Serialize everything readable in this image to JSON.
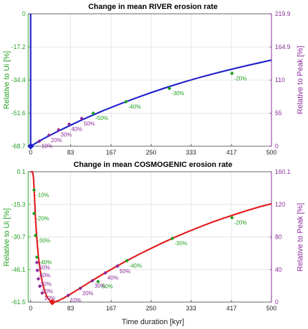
{
  "colors": {
    "left_axis": "#22a022",
    "right_axis": "#8a2a9a",
    "river_line": "#1f1fcc",
    "cosmo_line": "#e31a1c",
    "grid": "#e6e6e6",
    "label_green": "#22a022",
    "label_purple": "#8a2a9a"
  },
  "xaxis": {
    "label": "Time duration [kyr]",
    "ticks": [
      0,
      83,
      167,
      250,
      333,
      417,
      500
    ],
    "lim": [
      -5,
      500
    ]
  },
  "chart_data": [
    {
      "type": "line",
      "title": "Change in mean RIVER erosion rate",
      "ylabel_left": "Relative to Ui [%]",
      "ylabel_right": "Relative to Peak [%]",
      "left_ticks": [
        "0",
        "-17.2",
        "-34.4",
        "-51.6",
        "-68.7"
      ],
      "left_tick_values": [
        0,
        -17.2,
        -34.4,
        -51.6,
        -68.7
      ],
      "right_ticks": [
        "219.9",
        "164.9",
        "110",
        "55",
        "0"
      ],
      "right_tick_values": [
        219.9,
        164.9,
        110,
        55,
        0
      ],
      "ylim": [
        -68.7,
        0
      ],
      "xlim": [
        -5,
        500
      ],
      "series": [
        {
          "x": [
            0,
            0,
            0,
            10,
            25,
            50,
            75,
            100,
            125,
            150,
            175,
            200,
            225,
            250,
            275,
            300,
            325,
            350,
            375,
            400,
            425,
            450,
            475,
            500
          ],
          "y": [
            0,
            0,
            -68.7,
            -67.2,
            -65.0,
            -61.8,
            -58.7,
            -55.8,
            -53.0,
            -50.3,
            -47.8,
            -45.4,
            -43.1,
            -40.9,
            -38.8,
            -36.8,
            -34.9,
            -33.1,
            -31.4,
            -29.8,
            -28.3,
            -26.8,
            -25.4,
            -24.0
          ]
        }
      ],
      "markers": [
        {
          "x": 0,
          "y": -68.7,
          "label": "",
          "color": "#1f1fcc"
        },
        {
          "x": 18,
          "y": -66.1,
          "label": "10%",
          "color": "#8a2a9a"
        },
        {
          "x": 38,
          "y": -63.0,
          "label": "20%",
          "color": "#8a2a9a"
        },
        {
          "x": 58,
          "y": -60.2,
          "label": "30%",
          "color": "#8a2a9a"
        },
        {
          "x": 80,
          "y": -57.3,
          "label": "40%",
          "color": "#8a2a9a"
        },
        {
          "x": 106,
          "y": -54.3,
          "label": "50%",
          "color": "#8a2a9a"
        },
        {
          "x": 130,
          "y": -51.6,
          "label": "-50%",
          "color": "#22a022"
        },
        {
          "x": 198,
          "y": -45.6,
          "label": "-40%",
          "color": "#22a022"
        },
        {
          "x": 288,
          "y": -38.7,
          "label": "-30%",
          "color": "#22a022"
        },
        {
          "x": 418,
          "y": -30.9,
          "label": "-20%",
          "color": "#22a022"
        }
      ]
    },
    {
      "type": "line",
      "title": "Change in mean COSMOGENIC erosion rate",
      "ylabel_left": "Relative to Ui [%]",
      "ylabel_right": "Relative to Peak [%]",
      "left_ticks": [
        "0.1",
        "-15.3",
        "-30.7",
        "-46.1",
        "-61.5"
      ],
      "left_tick_values": [
        0.1,
        -15.3,
        -30.7,
        -46.1,
        -61.5
      ],
      "right_ticks": [
        "160.1",
        "120",
        "80",
        "40",
        "0"
      ],
      "right_tick_values": [
        160.1,
        120,
        80,
        40,
        0
      ],
      "ylim": [
        -61.5,
        0.1
      ],
      "xlim": [
        -5,
        500
      ],
      "series": [
        {
          "x": [
            0,
            4,
            6,
            8,
            10,
            13,
            16,
            20,
            25,
            30,
            35,
            40,
            45,
            50,
            60,
            70,
            80,
            100,
            125,
            150,
            175,
            200,
            225,
            250,
            275,
            300,
            325,
            350,
            375,
            400,
            425,
            450,
            475,
            500
          ],
          "y": [
            0.1,
            0.1,
            -3,
            -12,
            -22,
            -32,
            -40,
            -47,
            -53,
            -57,
            -59.5,
            -60.8,
            -61.5,
            -61.4,
            -60.6,
            -59.4,
            -58.1,
            -55.3,
            -51.7,
            -48.3,
            -45.0,
            -41.9,
            -38.9,
            -36.1,
            -33.4,
            -30.8,
            -28.4,
            -26.1,
            -23.9,
            -21.9,
            -20.0,
            -18.2,
            -16.5,
            -15.0
          ]
        }
      ],
      "markers": [
        {
          "x": 7,
          "y": -8.5,
          "label": "-10%",
          "color": "#22a022"
        },
        {
          "x": 7,
          "y": -19.6,
          "label": "-20%",
          "color": "#22a022"
        },
        {
          "x": 10,
          "y": -30.0,
          "label": "-30%",
          "color": "#22a022"
        },
        {
          "x": 13,
          "y": -40.3,
          "label": "-40%",
          "color": "#22a022"
        },
        {
          "x": 13,
          "y": -42.8,
          "label": "50%",
          "color": "#8a2a9a"
        },
        {
          "x": 14,
          "y": -46.5,
          "label": "40%",
          "color": "#8a2a9a"
        },
        {
          "x": 16,
          "y": -50.5,
          "label": "30%",
          "color": "#8a2a9a"
        },
        {
          "x": 19,
          "y": -54.0,
          "label": "20%",
          "color": "#8a2a9a"
        },
        {
          "x": 24,
          "y": -57.2,
          "label": "10%",
          "color": "#8a2a9a"
        },
        {
          "x": 45,
          "y": -61.5,
          "label": "",
          "color": "#e31a1c"
        },
        {
          "x": 78,
          "y": -58.3,
          "label": "10%",
          "color": "#8a2a9a"
        },
        {
          "x": 103,
          "y": -55.0,
          "label": "20%",
          "color": "#8a2a9a"
        },
        {
          "x": 128,
          "y": -51.4,
          "label": "30%",
          "color": "#8a2a9a"
        },
        {
          "x": 140,
          "y": -51.8,
          "label": "-50%",
          "color": "#22a022"
        },
        {
          "x": 155,
          "y": -47.7,
          "label": "40%",
          "color": "#8a2a9a"
        },
        {
          "x": 180,
          "y": -44.5,
          "label": "50%",
          "color": "#8a2a9a"
        },
        {
          "x": 200,
          "y": -41.9,
          "label": "-40%",
          "color": "#22a022"
        },
        {
          "x": 294,
          "y": -31.4,
          "label": "-30%",
          "color": "#22a022"
        },
        {
          "x": 418,
          "y": -21.6,
          "label": "-20%",
          "color": "#22a022"
        }
      ]
    }
  ]
}
